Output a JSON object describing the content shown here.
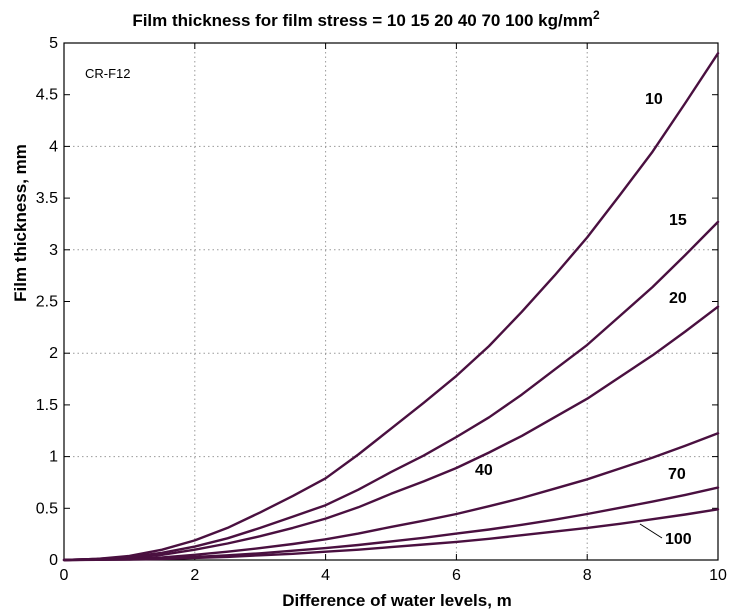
{
  "chart_data": {
    "type": "line",
    "title": "Film thickness for film stress = 10  15  20  40  70 100 kg/mm",
    "title_superscript": "2",
    "xlabel": "Difference of water levels, m",
    "ylabel": "Film thickness, mm",
    "annotation": "CR-F12",
    "xlim": [
      0,
      10
    ],
    "ylim": [
      0,
      5
    ],
    "xticks": [
      "0",
      "2",
      "4",
      "6",
      "8",
      "10"
    ],
    "yticks": [
      "0",
      "0.5",
      "1",
      "1.5",
      "2",
      "2.5",
      "3",
      "3.5",
      "4",
      "4.5",
      "5"
    ],
    "grid": true,
    "line_color": "#4a1040",
    "x": [
      0,
      0.5,
      1,
      1.5,
      2,
      2.5,
      3,
      3.5,
      4,
      4.5,
      5,
      5.5,
      6,
      6.5,
      7,
      7.5,
      8,
      8.5,
      9,
      9.5,
      10
    ],
    "series": [
      {
        "name": "10",
        "values": [
          0,
          0.01,
          0.04,
          0.1,
          0.19,
          0.31,
          0.46,
          0.62,
          0.79,
          1.02,
          1.27,
          1.52,
          1.78,
          2.07,
          2.4,
          2.75,
          3.12,
          3.53,
          3.95,
          4.42,
          4.9
        ]
      },
      {
        "name": "15",
        "values": [
          0,
          0.01,
          0.03,
          0.07,
          0.13,
          0.21,
          0.31,
          0.42,
          0.53,
          0.68,
          0.85,
          1.01,
          1.19,
          1.38,
          1.6,
          1.84,
          2.08,
          2.36,
          2.64,
          2.95,
          3.27
        ]
      },
      {
        "name": "20",
        "values": [
          0,
          0.01,
          0.02,
          0.05,
          0.1,
          0.16,
          0.23,
          0.31,
          0.4,
          0.51,
          0.64,
          0.76,
          0.89,
          1.04,
          1.2,
          1.38,
          1.56,
          1.77,
          1.98,
          2.21,
          2.45
        ]
      },
      {
        "name": "40",
        "values": [
          0,
          0.005,
          0.01,
          0.025,
          0.05,
          0.08,
          0.115,
          0.155,
          0.2,
          0.255,
          0.32,
          0.38,
          0.445,
          0.52,
          0.6,
          0.69,
          0.78,
          0.885,
          0.99,
          1.105,
          1.225
        ]
      },
      {
        "name": "70",
        "values": [
          0,
          0.003,
          0.006,
          0.015,
          0.03,
          0.045,
          0.065,
          0.09,
          0.115,
          0.145,
          0.18,
          0.215,
          0.255,
          0.295,
          0.34,
          0.39,
          0.445,
          0.505,
          0.565,
          0.63,
          0.7
        ]
      },
      {
        "name": "100",
        "values": [
          0,
          0.002,
          0.005,
          0.01,
          0.02,
          0.03,
          0.045,
          0.06,
          0.08,
          0.1,
          0.125,
          0.15,
          0.175,
          0.205,
          0.24,
          0.275,
          0.31,
          0.35,
          0.395,
          0.44,
          0.49
        ]
      }
    ]
  }
}
